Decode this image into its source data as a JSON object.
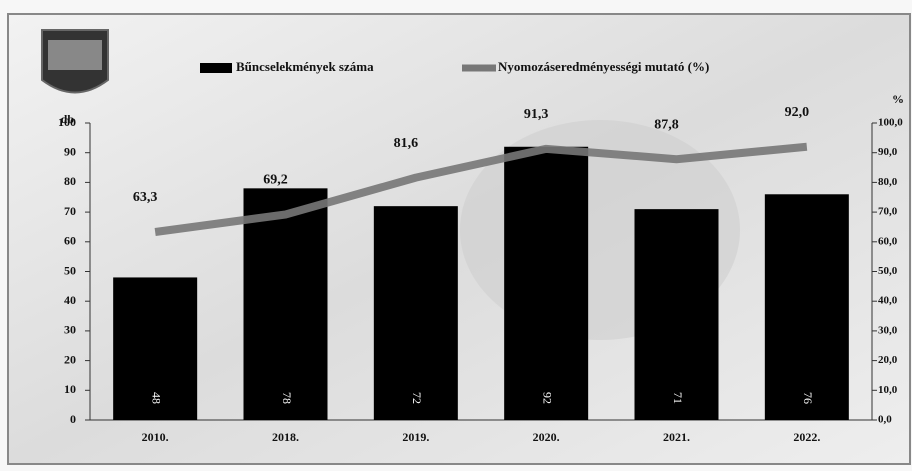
{
  "chart_data": {
    "type": "bar",
    "categories": [
      "2010.",
      "2018.",
      "2019.",
      "2020.",
      "2021.",
      "2022."
    ],
    "series": [
      {
        "name": "Bűncselekmények száma",
        "color": "#000000",
        "values": [
          48,
          78,
          72,
          92,
          71,
          76
        ]
      },
      {
        "name": "Nyomozáseredményességi mutató (%)",
        "color": "#777777",
        "axis": "y2",
        "type": "line",
        "values": [
          63.3,
          69.2,
          81.6,
          91.3,
          87.8,
          92.0
        ],
        "value_labels": [
          "63,3",
          "69,2",
          "81,6",
          "91,3",
          "87,8",
          "92,0"
        ]
      }
    ],
    "y_label": "db",
    "y2_label": "%",
    "ylim": [
      0,
      100
    ],
    "yticks": [
      0,
      10,
      20,
      30,
      40,
      50,
      60,
      70,
      80,
      90,
      100
    ],
    "y2lim": [
      0,
      100
    ],
    "y2ticks": [
      {
        "value": 0,
        "label": "0,0"
      },
      {
        "value": 10,
        "label": "10,0"
      },
      {
        "value": 20,
        "label": "20,0"
      },
      {
        "value": 30,
        "label": "30,0"
      },
      {
        "value": 40,
        "label": "40,0"
      },
      {
        "value": 50,
        "label": "50,0"
      },
      {
        "value": 60,
        "label": "60,0"
      },
      {
        "value": 70,
        "label": "70,0"
      },
      {
        "value": 80,
        "label": "80,0"
      },
      {
        "value": 90,
        "label": "90,0"
      },
      {
        "value": 100,
        "label": "100,0"
      }
    ],
    "legend": "top"
  }
}
